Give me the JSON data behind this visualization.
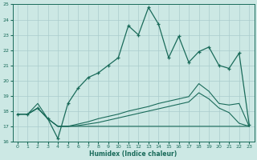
{
  "xlabel": "Humidex (Indice chaleur)",
  "xlim": [
    -0.5,
    23.5
  ],
  "ylim": [
    16,
    25
  ],
  "yticks": [
    16,
    17,
    18,
    19,
    20,
    21,
    22,
    23,
    24,
    25
  ],
  "xticks": [
    0,
    1,
    2,
    3,
    4,
    5,
    6,
    7,
    8,
    9,
    10,
    11,
    12,
    13,
    14,
    15,
    16,
    17,
    18,
    19,
    20,
    21,
    22,
    23
  ],
  "bg_color": "#cce8e4",
  "line_color": "#1a6b5a",
  "grid_color": "#aacccc",
  "main_line_x": [
    0,
    1,
    2,
    3,
    4,
    5,
    6,
    7,
    8,
    9,
    10,
    11,
    12,
    13,
    14,
    15,
    16,
    17,
    18,
    19,
    20,
    21,
    22,
    23
  ],
  "main_line_y": [
    17.8,
    17.8,
    18.2,
    17.5,
    16.2,
    18.5,
    19.5,
    20.2,
    20.5,
    21.0,
    21.5,
    23.6,
    23.0,
    24.8,
    23.7,
    21.5,
    22.9,
    21.2,
    21.9,
    22.2,
    21.0,
    20.8,
    21.8,
    17.1
  ],
  "line2_x": [
    0,
    1,
    2,
    3,
    4,
    5,
    23
  ],
  "line2_y": [
    17.8,
    17.8,
    18.5,
    17.5,
    17.0,
    17.0,
    17.0
  ],
  "line3_x": [
    0,
    1,
    2,
    3,
    4,
    5,
    6,
    7,
    8,
    9,
    10,
    11,
    12,
    13,
    14,
    15,
    16,
    17,
    18,
    19,
    20,
    21,
    22,
    23
  ],
  "line3_y": [
    17.8,
    17.8,
    18.2,
    17.5,
    17.0,
    17.0,
    17.15,
    17.3,
    17.5,
    17.65,
    17.8,
    18.0,
    18.15,
    18.3,
    18.5,
    18.65,
    18.8,
    18.95,
    19.8,
    19.3,
    18.5,
    18.4,
    18.5,
    17.0
  ],
  "line4_x": [
    0,
    1,
    2,
    3,
    4,
    5,
    6,
    7,
    8,
    9,
    10,
    11,
    12,
    13,
    14,
    15,
    16,
    17,
    18,
    19,
    20,
    21,
    22,
    23
  ],
  "line4_y": [
    17.8,
    17.8,
    18.2,
    17.5,
    17.0,
    17.0,
    17.05,
    17.15,
    17.25,
    17.4,
    17.55,
    17.7,
    17.85,
    18.0,
    18.15,
    18.3,
    18.45,
    18.6,
    19.2,
    18.8,
    18.2,
    17.9,
    17.2,
    17.0
  ]
}
